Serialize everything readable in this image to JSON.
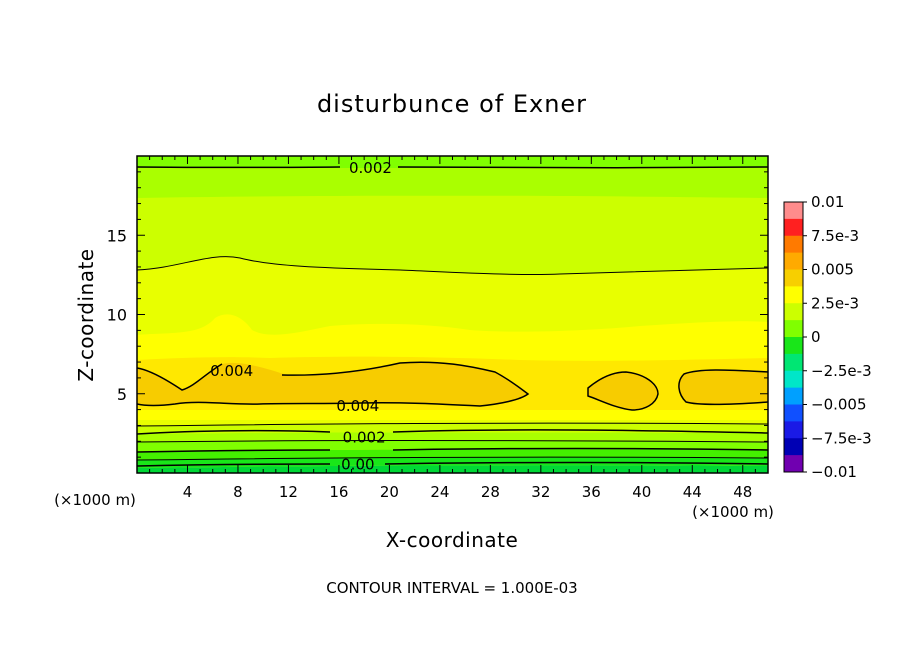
{
  "chart_data": {
    "type": "contour",
    "title": "disturbunce of Exner",
    "xlabel": "X-coordinate",
    "ylabel": "Z-coordinate",
    "x_unit_left": "(×1000 m)",
    "x_unit_right": "(×1000 m)",
    "footer": "CONTOUR INTERVAL = 1.000E-03",
    "xlim": [
      0,
      50
    ],
    "ylim": [
      0,
      20
    ],
    "xticks": [
      4,
      8,
      12,
      16,
      20,
      24,
      28,
      32,
      36,
      40,
      44,
      48
    ],
    "yticks": [
      5,
      10,
      15
    ],
    "contour_labels": [
      {
        "text": "0.002",
        "x": 18.5,
        "z": 19.3
      },
      {
        "text": "0.004",
        "x": 7.5,
        "z": 6.5
      },
      {
        "text": "0.004",
        "x": 17.5,
        "z": 4.3
      },
      {
        "text": "0.002",
        "x": 18.0,
        "z": 2.3
      },
      {
        "text": "0.00",
        "x": 17.5,
        "z": 0.6
      }
    ],
    "colorbar": {
      "labels": [
        "0.01",
        "7.5e-3",
        "0.005",
        "2.5e-3",
        "0",
        "−2.5e-3",
        "−0.005",
        "−7.5e-3",
        "−0.01"
      ],
      "colors": [
        "#ff8c8c",
        "#ff2020",
        "#ff7a00",
        "#ffaa00",
        "#f7cf00",
        "#ffff00",
        "#ccff00",
        "#80ff00",
        "#19e619",
        "#00e673",
        "#00e6c8",
        "#00a0ff",
        "#1050ff",
        "#1a1ae6",
        "#0000b4",
        "#7000b0"
      ]
    },
    "bands": [
      {
        "level": "-0.001..0",
        "color": "#00d836"
      },
      {
        "level": "0..0.0005",
        "color": "#19e619"
      },
      {
        "level": "0.0005..0.001",
        "color": "#44f000"
      },
      {
        "level": "0.001..0.0015",
        "color": "#80ff00"
      },
      {
        "level": "0.0015..0.002",
        "color": "#aaff00"
      },
      {
        "level": "0.002..0.0025",
        "color": "#ccff00"
      },
      {
        "level": "0.0025..0.003",
        "color": "#e8ff00"
      },
      {
        "level": "0.003..0.0035",
        "color": "#ffff00"
      },
      {
        "level": "0.0035..0.004",
        "color": "#ffe800"
      },
      {
        "level": "0.004..0.0045",
        "color": "#f7cc00"
      }
    ]
  }
}
